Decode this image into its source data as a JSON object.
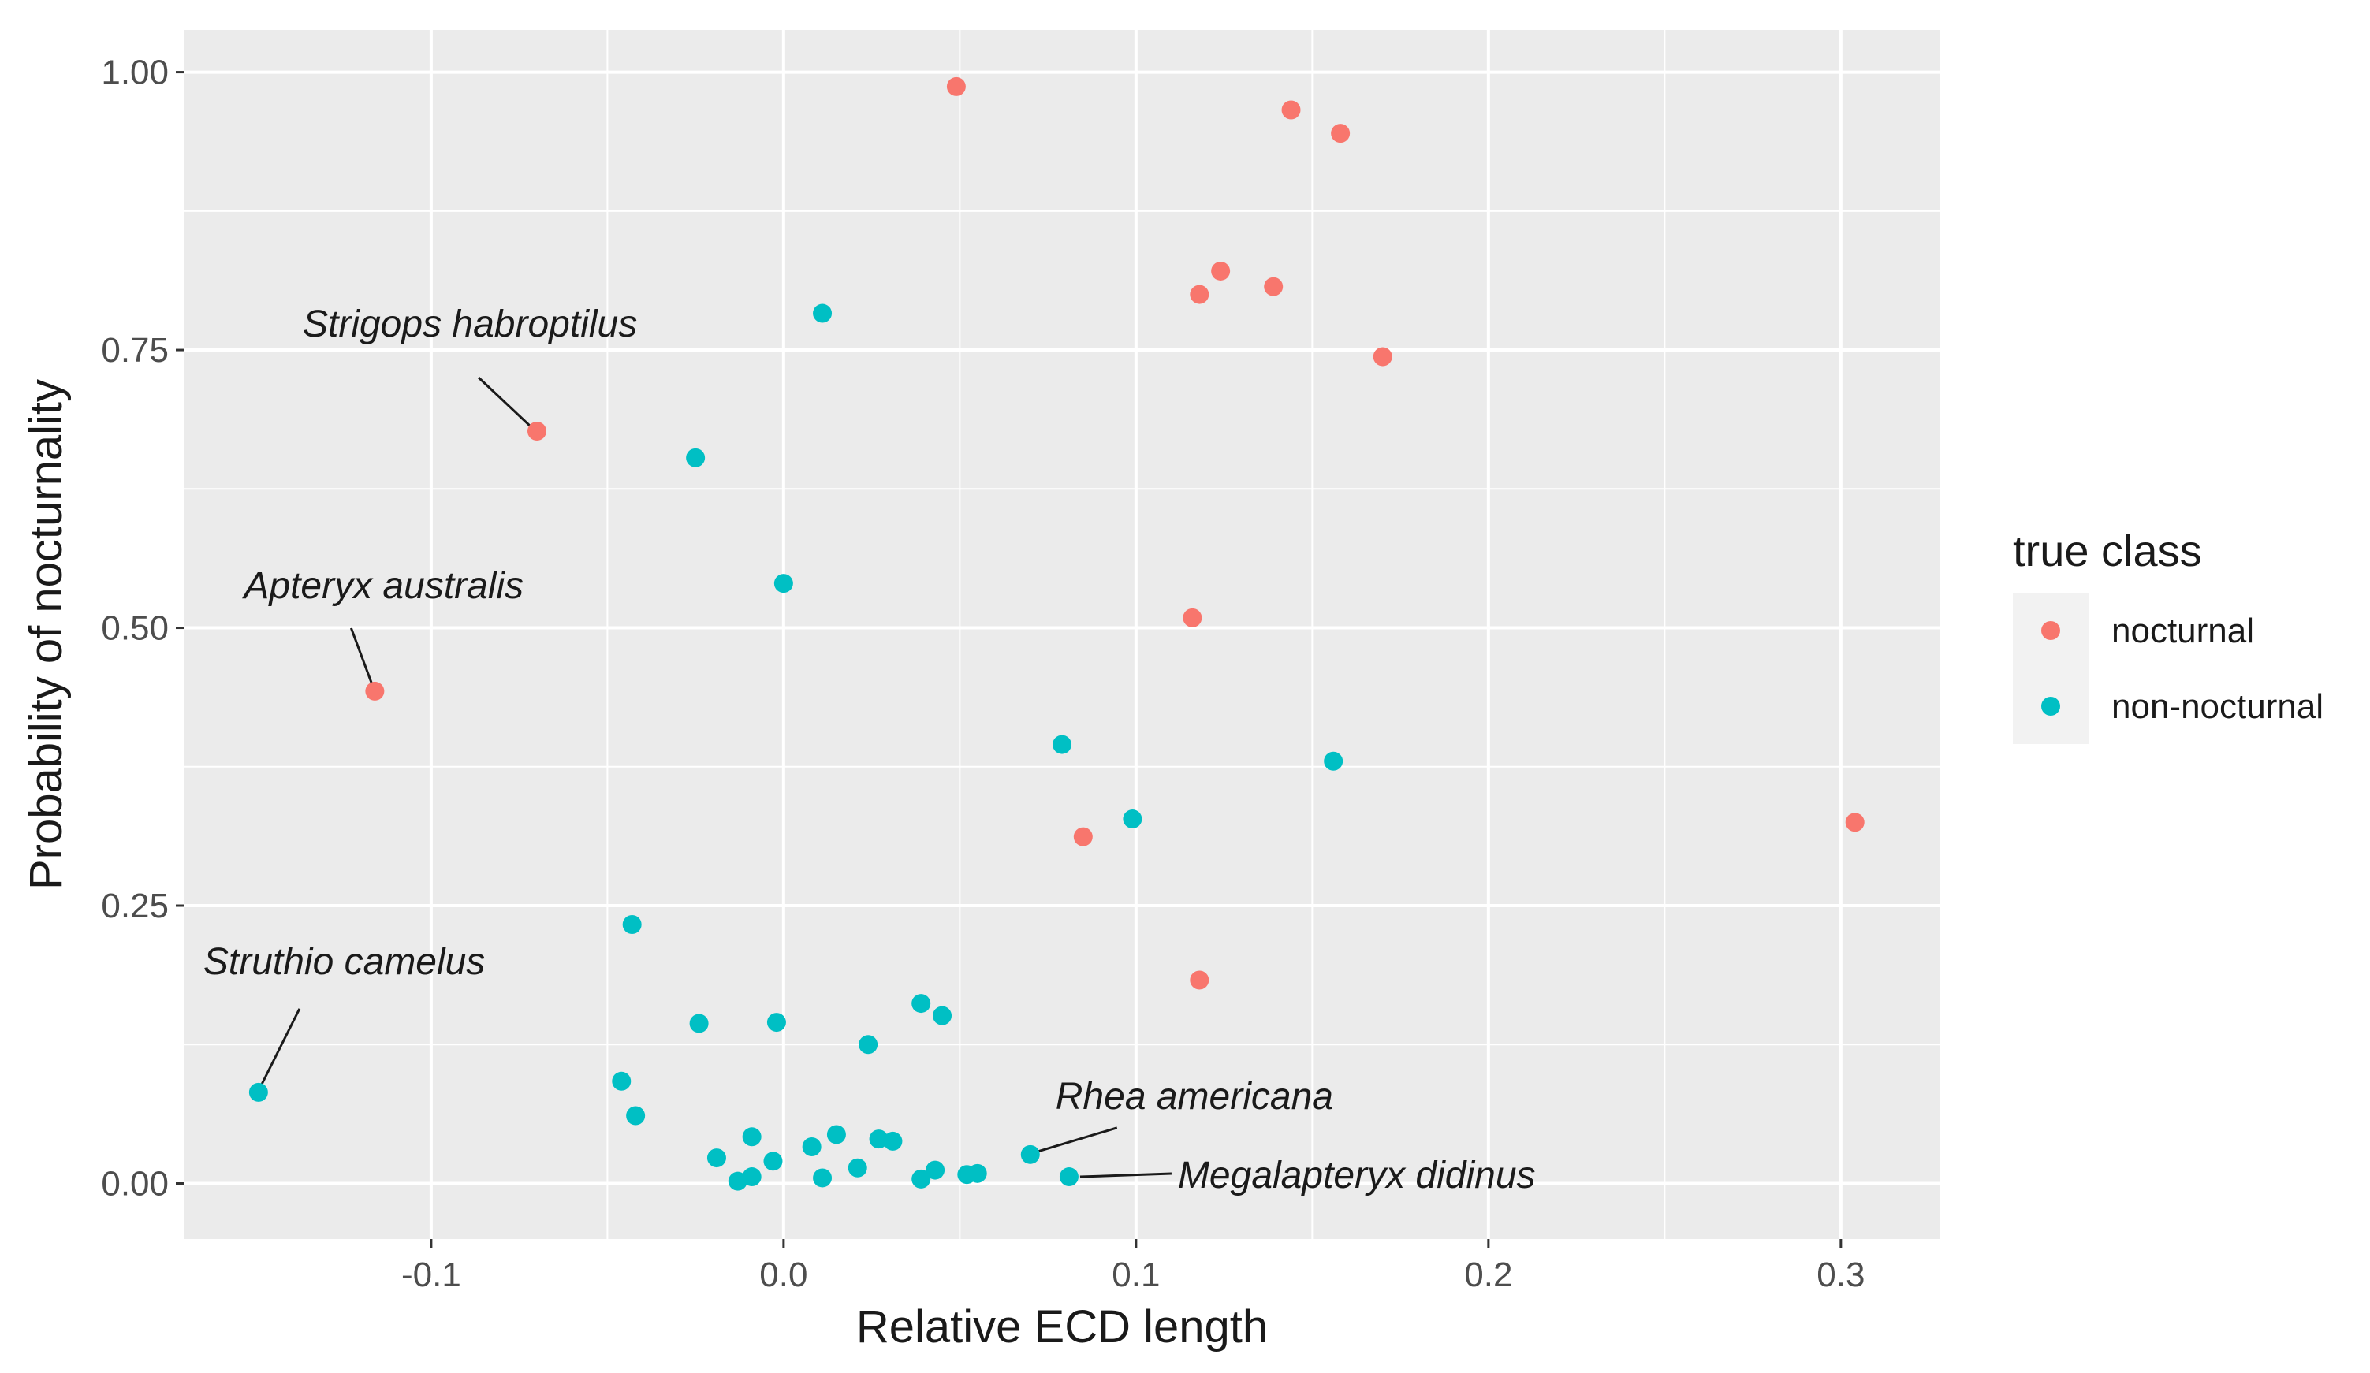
{
  "chart_data": {
    "type": "scatter",
    "title": "",
    "xlabel": "Relative  ECD  length",
    "ylabel": "Probability  of  nocturnality",
    "xlim": [
      -0.17,
      0.328
    ],
    "ylim": [
      -0.05,
      1.038
    ],
    "x_ticks": [
      -0.1,
      0.0,
      0.1,
      0.2,
      0.3
    ],
    "x_tick_labels": [
      "-0.1",
      "0.0",
      "0.1",
      "0.2",
      "0.3"
    ],
    "y_ticks": [
      0.0,
      0.25,
      0.5,
      0.75,
      1.0
    ],
    "y_tick_labels": [
      "0.00",
      "0.25",
      "0.50",
      "0.75",
      "1.00"
    ],
    "grid": true,
    "legend": {
      "title": "true  class",
      "placement": "right",
      "entries": [
        {
          "label": "nocturnal",
          "color": "#F8766D"
        },
        {
          "label": "non-nocturnal",
          "color": "#00BFC4"
        }
      ]
    },
    "colors": {
      "panel": "#EBEBEB",
      "grid_major": "#FFFFFF",
      "nocturnal": "#F8766D",
      "non_nocturnal": "#00BFC4"
    },
    "series": [
      {
        "name": "nocturnal",
        "points": [
          {
            "x": 0.049,
            "y": 0.987
          },
          {
            "x": 0.144,
            "y": 0.966
          },
          {
            "x": 0.158,
            "y": 0.945
          },
          {
            "x": 0.124,
            "y": 0.821
          },
          {
            "x": 0.118,
            "y": 0.8
          },
          {
            "x": 0.139,
            "y": 0.807
          },
          {
            "x": 0.17,
            "y": 0.744
          },
          {
            "x": -0.07,
            "y": 0.677
          },
          {
            "x": 0.116,
            "y": 0.509
          },
          {
            "x": -0.116,
            "y": 0.443
          },
          {
            "x": 0.085,
            "y": 0.312
          },
          {
            "x": 0.304,
            "y": 0.325
          },
          {
            "x": 0.118,
            "y": 0.183
          }
        ]
      },
      {
        "name": "non-nocturnal",
        "points": [
          {
            "x": 0.011,
            "y": 0.783
          },
          {
            "x": -0.025,
            "y": 0.653
          },
          {
            "x": 0.0,
            "y": 0.54
          },
          {
            "x": 0.079,
            "y": 0.395
          },
          {
            "x": 0.156,
            "y": 0.38
          },
          {
            "x": 0.099,
            "y": 0.328
          },
          {
            "x": -0.043,
            "y": 0.233
          },
          {
            "x": 0.039,
            "y": 0.162
          },
          {
            "x": 0.045,
            "y": 0.151
          },
          {
            "x": -0.024,
            "y": 0.144
          },
          {
            "x": -0.002,
            "y": 0.145
          },
          {
            "x": 0.024,
            "y": 0.125
          },
          {
            "x": -0.046,
            "y": 0.092
          },
          {
            "x": -0.149,
            "y": 0.082
          },
          {
            "x": -0.042,
            "y": 0.061
          },
          {
            "x": 0.015,
            "y": 0.044
          },
          {
            "x": -0.009,
            "y": 0.042
          },
          {
            "x": 0.027,
            "y": 0.04
          },
          {
            "x": 0.031,
            "y": 0.038
          },
          {
            "x": 0.008,
            "y": 0.033
          },
          {
            "x": 0.07,
            "y": 0.026
          },
          {
            "x": -0.019,
            "y": 0.023
          },
          {
            "x": -0.003,
            "y": 0.02
          },
          {
            "x": 0.021,
            "y": 0.014
          },
          {
            "x": 0.043,
            "y": 0.012
          },
          {
            "x": 0.055,
            "y": 0.009
          },
          {
            "x": 0.052,
            "y": 0.008
          },
          {
            "x": -0.009,
            "y": 0.006
          },
          {
            "x": 0.081,
            "y": 0.006
          },
          {
            "x": 0.011,
            "y": 0.005
          },
          {
            "x": 0.039,
            "y": 0.004
          },
          {
            "x": -0.013,
            "y": 0.002
          }
        ]
      }
    ],
    "annotations": [
      {
        "text": "Strigops habroptilus",
        "x": -0.07,
        "y": 0.677
      },
      {
        "text": "Apteryx australis",
        "x": -0.116,
        "y": 0.443
      },
      {
        "text": "Struthio camelus",
        "x": -0.149,
        "y": 0.082
      },
      {
        "text": "Rhea americana",
        "x": 0.07,
        "y": 0.026
      },
      {
        "text": "Megalapteryx didinus",
        "x": 0.081,
        "y": 0.006
      }
    ]
  }
}
